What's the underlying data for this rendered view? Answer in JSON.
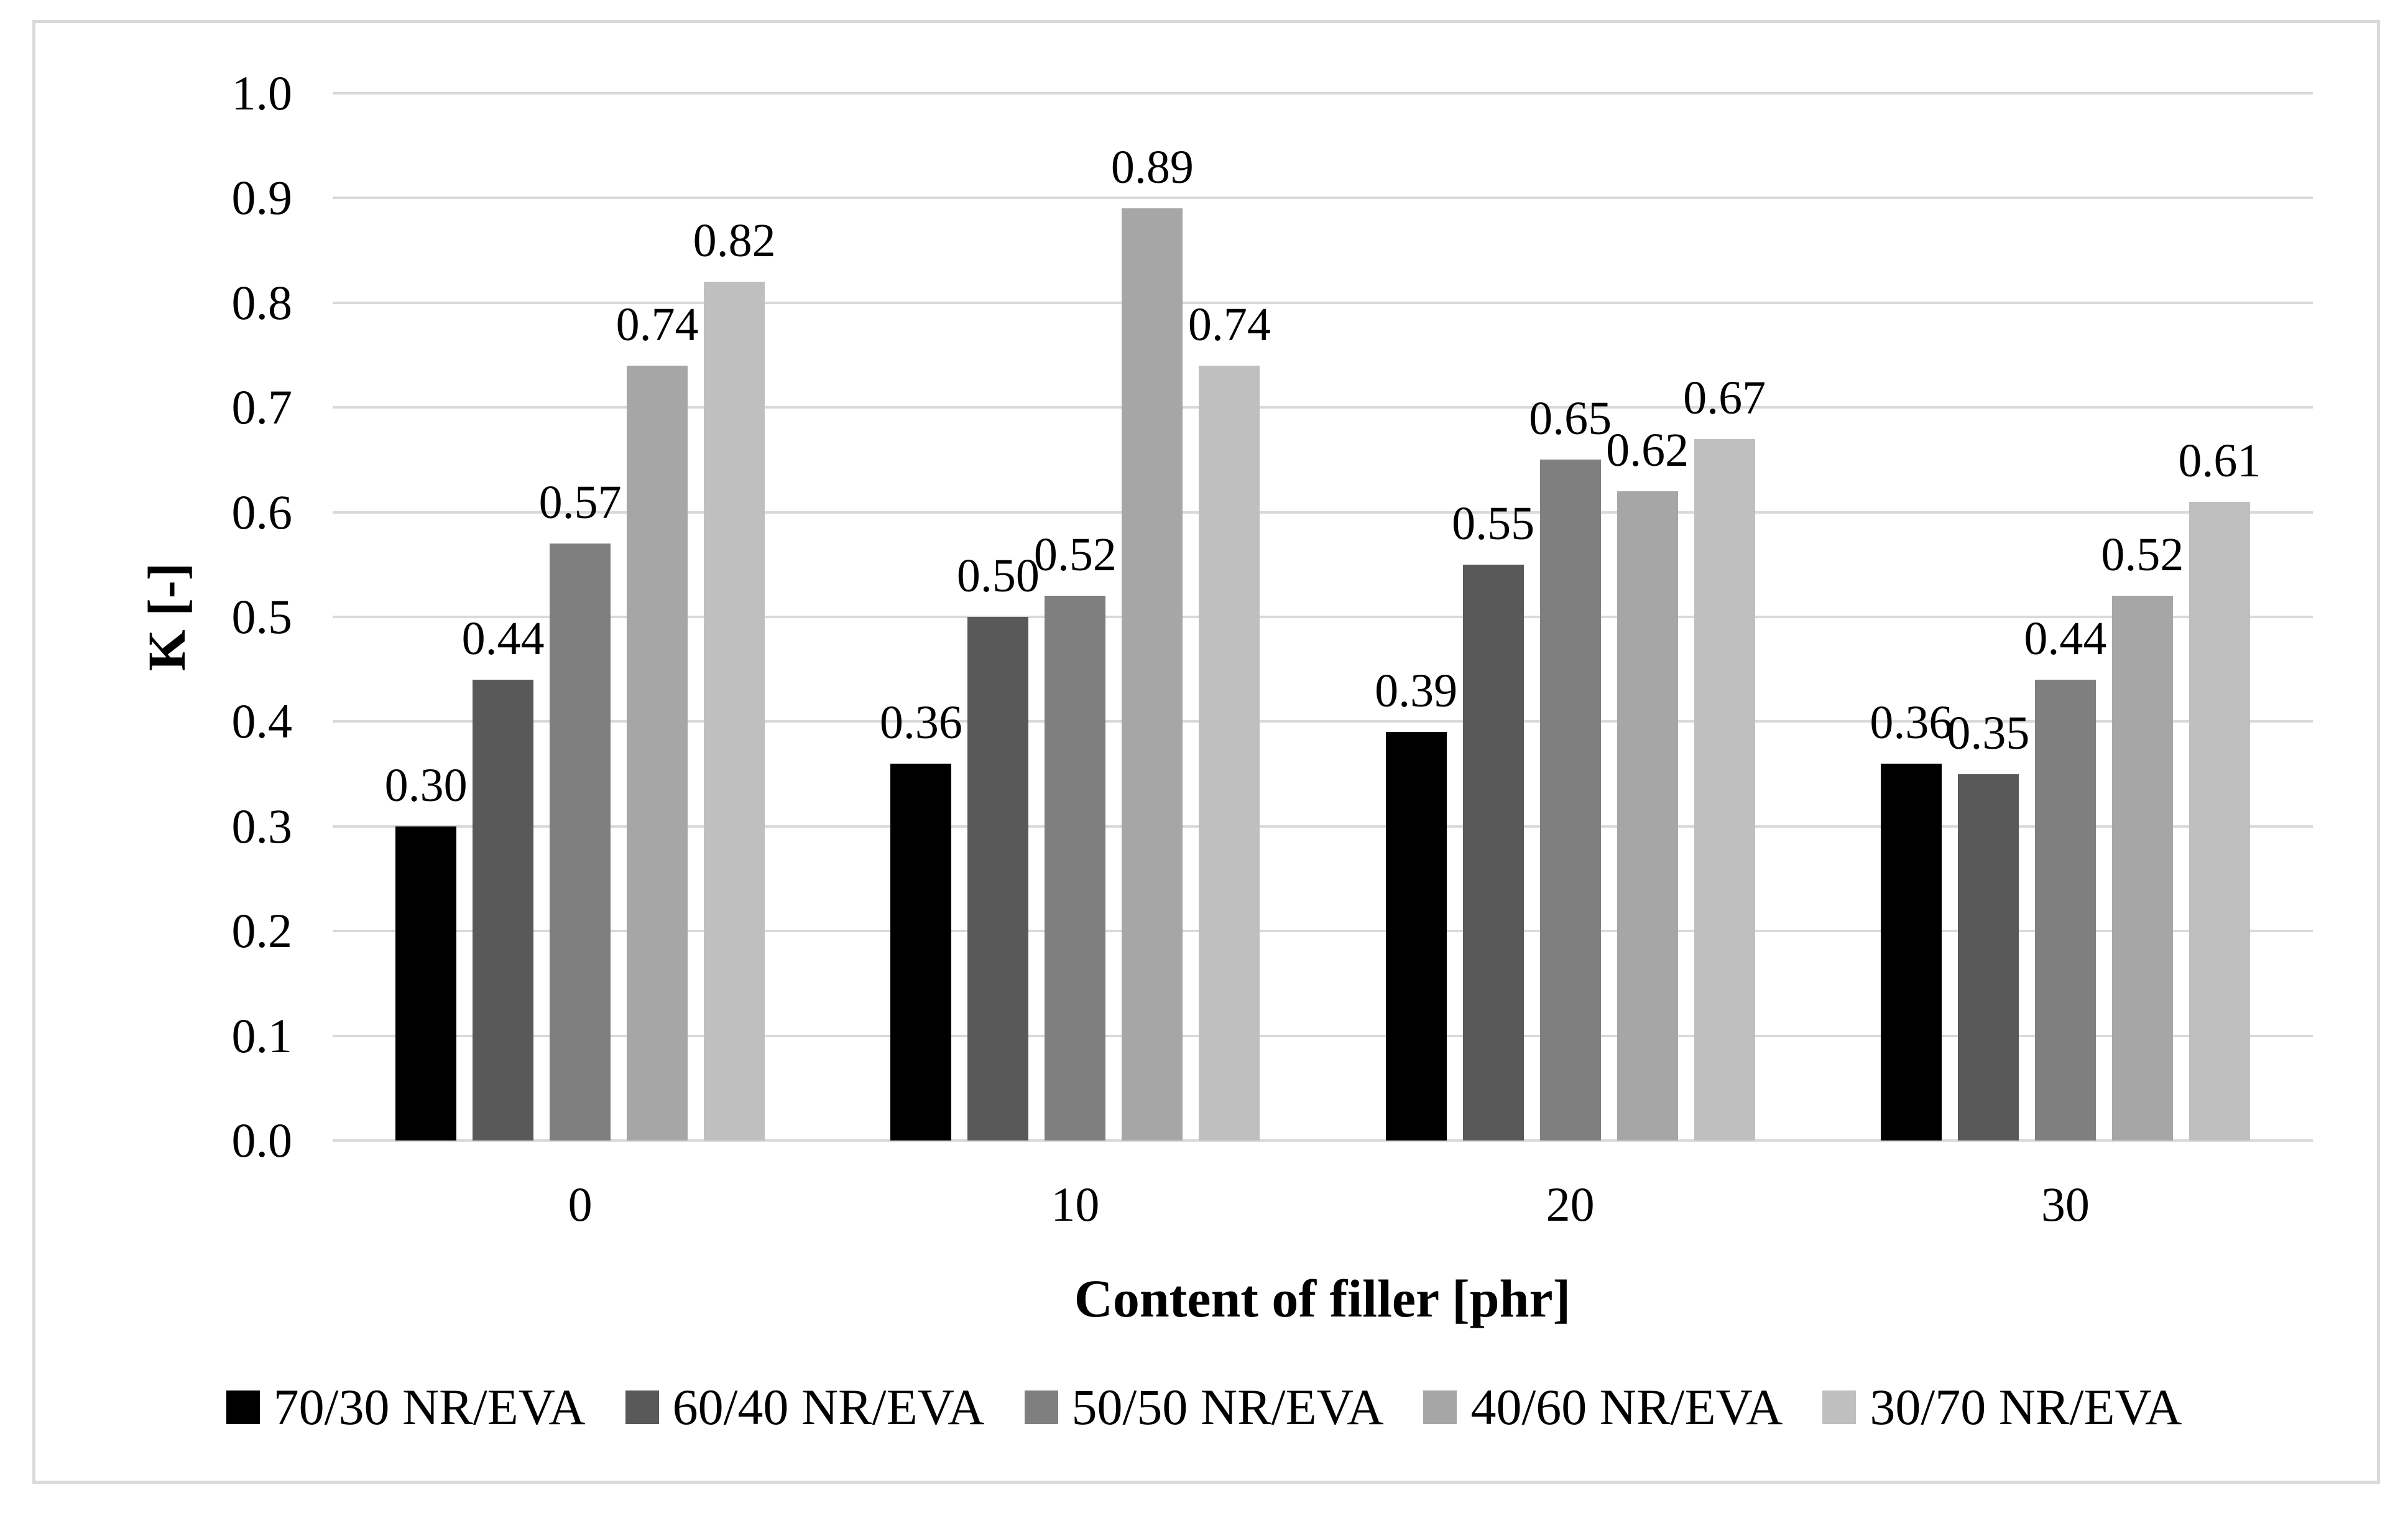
{
  "figure": {
    "background_color": "#FFFFFF",
    "border_color": "#D9D9D9"
  },
  "chart_data": {
    "type": "bar",
    "title": "",
    "xlabel": "Content of filler [phr]",
    "ylabel": "K [-]",
    "categories": [
      "0",
      "10",
      "20",
      "30"
    ],
    "series": [
      {
        "name": "70/30 NR/EVA",
        "color": "#000000",
        "values": [
          0.3,
          0.36,
          0.39,
          0.36
        ]
      },
      {
        "name": "60/40 NR/EVA",
        "color": "#595959",
        "values": [
          0.44,
          0.5,
          0.55,
          0.35
        ]
      },
      {
        "name": "50/50 NR/EVA",
        "color": "#7F7F7F",
        "values": [
          0.57,
          0.52,
          0.65,
          0.44
        ]
      },
      {
        "name": "40/60 NR/EVA",
        "color": "#A6A6A6",
        "values": [
          0.74,
          0.89,
          0.62,
          0.52
        ]
      },
      {
        "name": "30/70 NR/EVA",
        "color": "#BFBFBF",
        "values": [
          0.82,
          0.74,
          0.67,
          0.61
        ]
      }
    ],
    "data_labels": true,
    "label_decimals": 2,
    "ylim": [
      0.0,
      1.0
    ],
    "ytick_step": 0.1,
    "ytick_labels": [
      "0.0",
      "0.1",
      "0.2",
      "0.3",
      "0.4",
      "0.5",
      "0.6",
      "0.7",
      "0.8",
      "0.9",
      "1.0"
    ],
    "grid": "horizontal",
    "gridline_color": "#D9D9D9",
    "legend_position": "bottom"
  }
}
